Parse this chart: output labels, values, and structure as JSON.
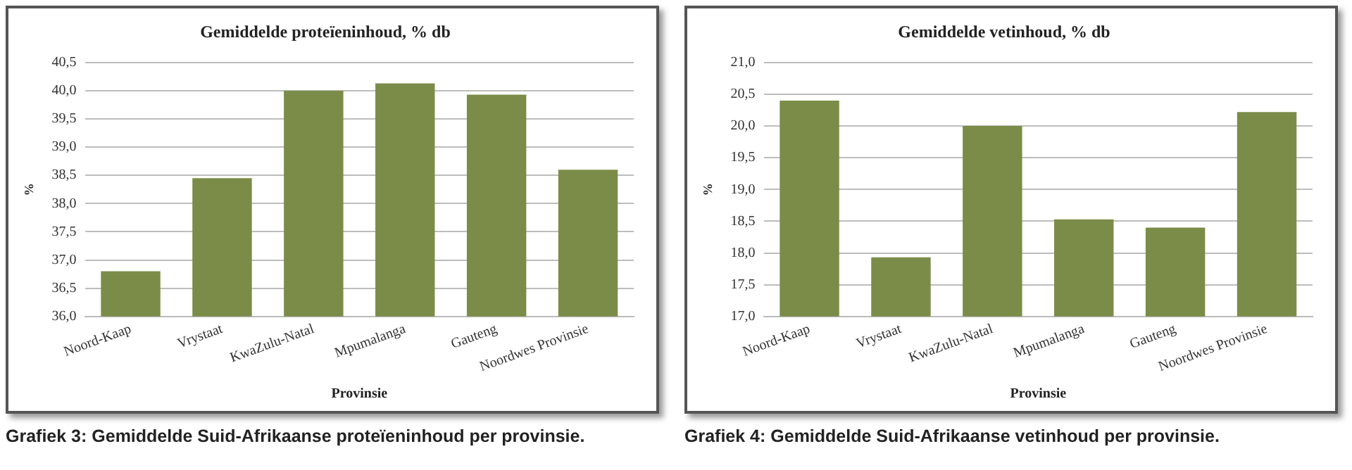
{
  "chart_data": [
    {
      "type": "bar",
      "title": "Gemiddelde proteïeninhoud, % db",
      "xlabel": "Provinsie",
      "ylabel": "%",
      "categories": [
        "Noord-Kaap",
        "Vrystaat",
        "KwaZulu-Natal",
        "Mpumalanga",
        "Gauteng",
        "Noordwes Provinsie"
      ],
      "values": [
        36.8,
        38.45,
        40.0,
        40.13,
        39.93,
        38.6
      ],
      "color": "#7b8c48",
      "ylim": [
        36,
        40.5
      ],
      "yticks": [
        {
          "value": 36,
          "label": "36,0"
        },
        {
          "value": 36.5,
          "label": "36,5"
        },
        {
          "value": 37,
          "label": "37,0"
        },
        {
          "value": 37.5,
          "label": "37,5"
        },
        {
          "value": 38,
          "label": "38,0"
        },
        {
          "value": 38.5,
          "label": "38,5"
        },
        {
          "value": 39,
          "label": "39,0"
        },
        {
          "value": 39.5,
          "label": "39,5"
        },
        {
          "value": 40,
          "label": "40,0"
        },
        {
          "value": 40.5,
          "label": "40,5"
        }
      ],
      "grid": "y",
      "annotations": [
        "Grafiek 3: Gemiddelde Suid-Afrikaanse proteïeninhoud per provinsie."
      ]
    },
    {
      "type": "bar",
      "title": "Gemiddelde vetinhoud, % db",
      "xlabel": "Provinsie",
      "ylabel": "%",
      "categories": [
        "Noord-Kaap",
        "Vrystaat",
        "KwaZulu-Natal",
        "Mpumalanga",
        "Gauteng",
        "Noordwes Provinsie"
      ],
      "values": [
        20.4,
        17.93,
        20.0,
        18.53,
        18.4,
        20.22
      ],
      "color": "#7b8c48",
      "ylim": [
        17,
        21
      ],
      "yticks": [
        {
          "value": 17,
          "label": "17,0"
        },
        {
          "value": 17.5,
          "label": "17,5"
        },
        {
          "value": 18,
          "label": "18,0"
        },
        {
          "value": 18.5,
          "label": "18,5"
        },
        {
          "value": 19,
          "label": "19,0"
        },
        {
          "value": 19.5,
          "label": "19,5"
        },
        {
          "value": 20,
          "label": "20,0"
        },
        {
          "value": 20.5,
          "label": "20,5"
        },
        {
          "value": 21,
          "label": "21,0"
        }
      ],
      "grid": "y",
      "annotations": [
        "Grafiek 4: Gemiddelde Suid-Afrikaanse vetinhoud per provinsie."
      ]
    }
  ]
}
